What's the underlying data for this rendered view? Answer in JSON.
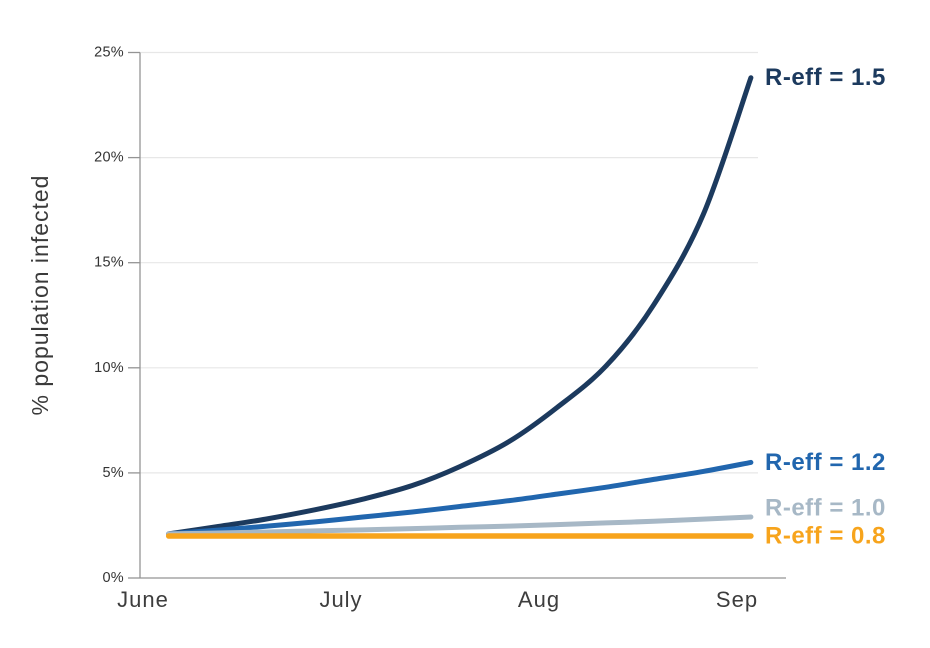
{
  "page": {
    "background": "#ffffff"
  },
  "chart_data": {
    "type": "line",
    "title": "",
    "xlabel": "",
    "ylabel": "% population infected",
    "x_tick_labels": [
      "June",
      "July",
      "Aug",
      "Sep"
    ],
    "y_tick_labels": [
      "0%",
      "5%",
      "10%",
      "15%",
      "20%",
      "25%"
    ],
    "y_tick_values": [
      0,
      5,
      10,
      15,
      20,
      25
    ],
    "ylim": [
      0,
      25
    ],
    "grid": "horizontal",
    "legend_position": "end-of-line-labels",
    "axis_color": "#949494",
    "gridline_color": "#e7e7e7",
    "x_months": [
      0.13,
      0.38,
      0.62,
      0.87,
      1.11,
      1.36,
      1.6,
      1.85,
      2.09,
      2.34,
      2.58,
      2.83,
      3.07
    ],
    "x_months_note": "0 = June tick, 1 = July, 2 = Aug, 3 = Sep; 13 evenly spaced samples",
    "series": [
      {
        "name": "R-eff = 1.5",
        "color": "#1c3a5e",
        "values": [
          2.1,
          2.45,
          2.8,
          3.25,
          3.75,
          4.4,
          5.3,
          6.5,
          8.1,
          10.1,
          13.0,
          17.3,
          23.8
        ]
      },
      {
        "name": "R-eff = 1.2",
        "color": "#2166ae",
        "values": [
          2.1,
          2.28,
          2.46,
          2.67,
          2.9,
          3.14,
          3.4,
          3.68,
          3.99,
          4.32,
          4.69,
          5.07,
          5.5
        ]
      },
      {
        "name": "R-eff = 1.0",
        "color": "#a7b8c6",
        "values": [
          2.1,
          2.14,
          2.19,
          2.24,
          2.29,
          2.35,
          2.41,
          2.47,
          2.54,
          2.62,
          2.7,
          2.8,
          2.9
        ]
      },
      {
        "name": "R-eff = 0.8",
        "color": "#f7a41c",
        "values": [
          2.0,
          2.0,
          2.0,
          2.0,
          2.0,
          2.0,
          2.0,
          2.0,
          2.0,
          2.0,
          2.0,
          2.0,
          2.0
        ]
      }
    ]
  }
}
